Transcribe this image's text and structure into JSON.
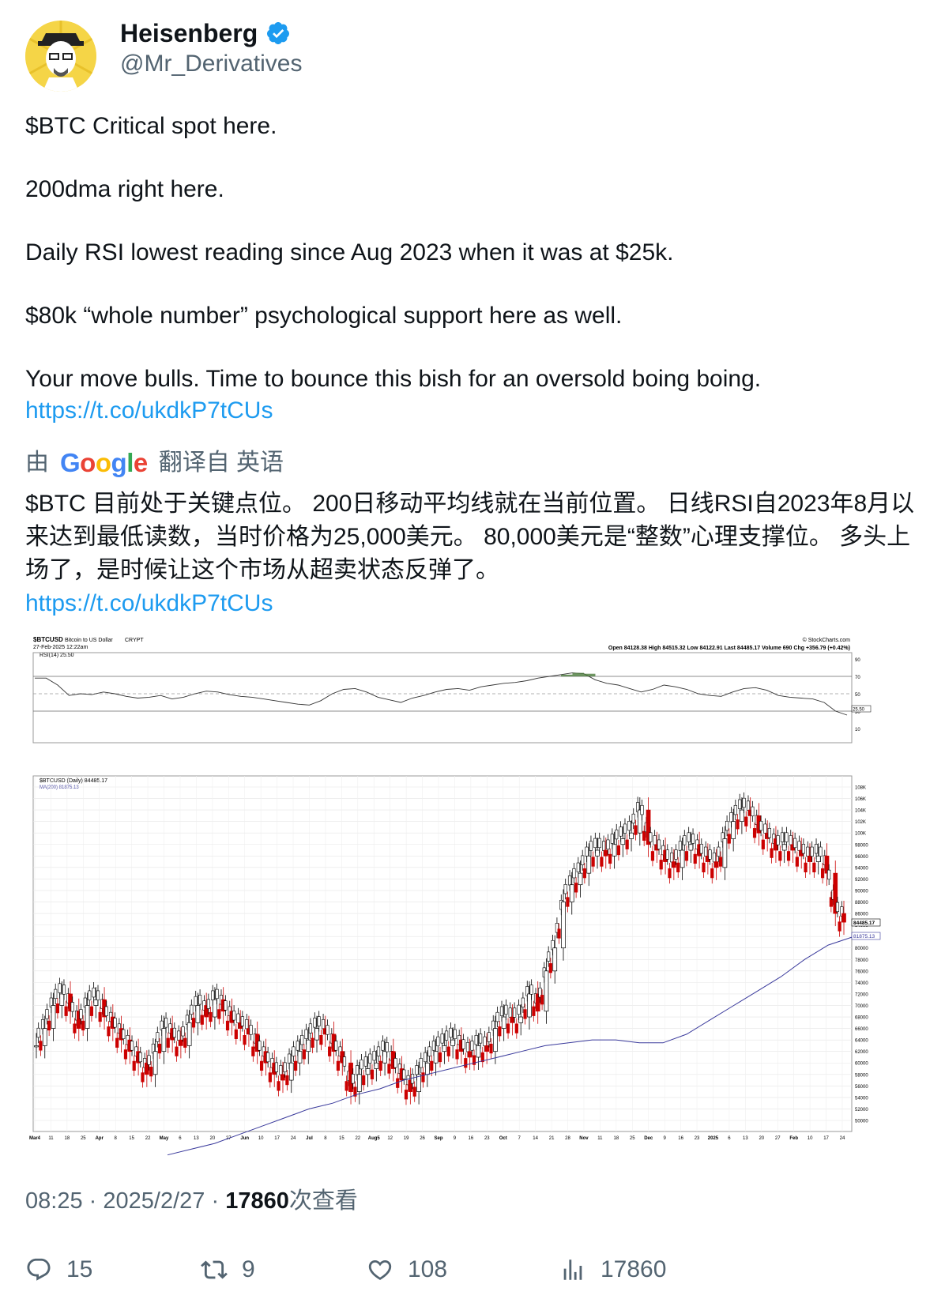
{
  "author": {
    "display_name": "Heisenberg",
    "handle": "@Mr_Derivatives",
    "verified": true
  },
  "tweet": {
    "paragraphs": [
      "$BTC Critical spot here.",
      "200dma right here.",
      "Daily RSI lowest reading since Aug 2023 when it was at $25k.",
      "$80k “whole number” psychological support here as well.",
      "Your move bulls. Time to bounce this bish for an oversold boing boing."
    ],
    "link": "https://t.co/ukdkP7tCUs"
  },
  "translation": {
    "prefix": "由",
    "google": "Google",
    "suffix": "翻译自 英语",
    "text": "$BTC 目前处于关键点位。 200日移动平均线就在当前位置。 日线RSI自2023年8月以来达到最低读数，当时价格为25,000美元。 80,000美元是“整数”心理支撑位。 多头上场了，是时候让这个市场从超卖状态反弹了。",
    "link": "https://t.co/ukdkP7tCUs"
  },
  "chart_header": {
    "symbol": "$BTCUSD",
    "name": "Bitcoin to US Dollar",
    "exchange": "CRYPT",
    "date": "27-Feb-2025 12:22am",
    "ohlc": "Open 84128.38  High 84515.32  Low 84122.91  Last 84485.17  Volume 690  Chg +356.79 (+0.42%)",
    "source": "© StockCharts.com",
    "rsi_label": "RSI(14) 25.50",
    "price_label": "$BTCUSD (Daily) 84485.17",
    "ma_label": "MA(200) 81875.13",
    "last_tag": "84485.17",
    "ma_tag": "81875.13",
    "rsi_tag": "25.50"
  },
  "chart_data": {
    "type": "line",
    "rsi_ticks": [
      "90",
      "70",
      "50",
      "30",
      "10"
    ],
    "price_ticks": [
      "108K",
      "106K",
      "104K",
      "102K",
      "100K",
      "98000",
      "96000",
      "94000",
      "92000",
      "90000",
      "88000",
      "86000",
      "84000",
      "82000",
      "80000",
      "78000",
      "76000",
      "74000",
      "72000",
      "70000",
      "68000",
      "66000",
      "64000",
      "62000",
      "60000",
      "58000",
      "56000",
      "54000",
      "52000",
      "50000"
    ],
    "x_ticks": [
      "Mar4",
      "11",
      "18",
      "25",
      "Apr",
      "8",
      "15",
      "22",
      "May",
      "6",
      "13",
      "20",
      "27",
      "Jun",
      "10",
      "17",
      "24",
      "Jul",
      "8",
      "15",
      "22",
      "Aug5",
      "12",
      "19",
      "26",
      "Sep",
      "9",
      "16",
      "23",
      "Oct",
      "7",
      "14",
      "21",
      "28",
      "Nov",
      "11",
      "18",
      "25",
      "Dec",
      "9",
      "16",
      "23",
      "2025",
      "6",
      "13",
      "20",
      "27",
      "Feb",
      "10",
      "17",
      "24"
    ],
    "price_series": [
      63000,
      66000,
      70000,
      72000,
      69000,
      66000,
      70000,
      71000,
      68000,
      66000,
      64000,
      62000,
      60000,
      58000,
      62000,
      66000,
      64000,
      63000,
      67000,
      70000,
      68000,
      71000,
      69000,
      67000,
      66000,
      65000,
      62000,
      60000,
      58000,
      57000,
      60000,
      62000,
      64000,
      66000,
      65000,
      62000,
      60000,
      55000,
      58000,
      59000,
      60000,
      62000,
      59000,
      57000,
      55000,
      58000,
      60000,
      62000,
      63000,
      64000,
      62000,
      61000,
      63000,
      62000,
      66000,
      68000,
      67000,
      68000,
      72000,
      69000,
      76000,
      80000,
      88000,
      91000,
      93000,
      96000,
      97000,
      96000,
      98000,
      99000,
      100000,
      104000,
      98000,
      97000,
      95000,
      94000,
      97000,
      98000,
      96000,
      95000,
      94000,
      99000,
      102000,
      104000,
      103000,
      100000,
      99000,
      97000,
      98000,
      97000,
      96000,
      95000,
      96000,
      93000,
      86000,
      84485
    ],
    "ma200_series": [
      44000,
      45000,
      46000,
      47500,
      49000,
      50500,
      52000,
      53000,
      54500,
      55500,
      57000,
      58000,
      59000,
      60000,
      61000,
      62000,
      63000,
      63500,
      64000,
      64000,
      63500,
      63500,
      65000,
      67500,
      70000,
      72500,
      75000,
      78000,
      80500,
      81875
    ],
    "rsi_series": [
      68,
      68,
      60,
      48,
      50,
      49,
      52,
      50,
      47,
      45,
      46,
      48,
      44,
      46,
      50,
      53,
      52,
      49,
      47,
      46,
      44,
      42,
      40,
      38,
      37,
      42,
      50,
      55,
      56,
      52,
      46,
      43,
      40,
      45,
      48,
      52,
      55,
      56,
      54,
      58,
      60,
      62,
      63,
      65,
      68,
      70,
      72,
      74,
      73,
      66,
      62,
      60,
      56,
      52,
      55,
      60,
      58,
      55,
      50,
      48,
      47,
      52,
      56,
      57,
      54,
      48,
      46,
      45,
      44,
      40,
      30,
      25.5
    ],
    "xlabel": "",
    "ylabel": ""
  },
  "meta": {
    "time": "08:25",
    "date": "2025/2/27",
    "views": "17860",
    "views_suffix": "次查看",
    "separator": "·"
  },
  "actions": {
    "replies": "15",
    "retweets": "9",
    "likes": "108",
    "views": "17860"
  },
  "colors": {
    "link": "#1d9bf0",
    "muted": "#536471",
    "verified": "#1d9bf0",
    "up_candle": "#000000",
    "down_candle": "#cc0000",
    "ma_line": "#3a3a9c",
    "rsi_fill": "#4a7a3a"
  }
}
